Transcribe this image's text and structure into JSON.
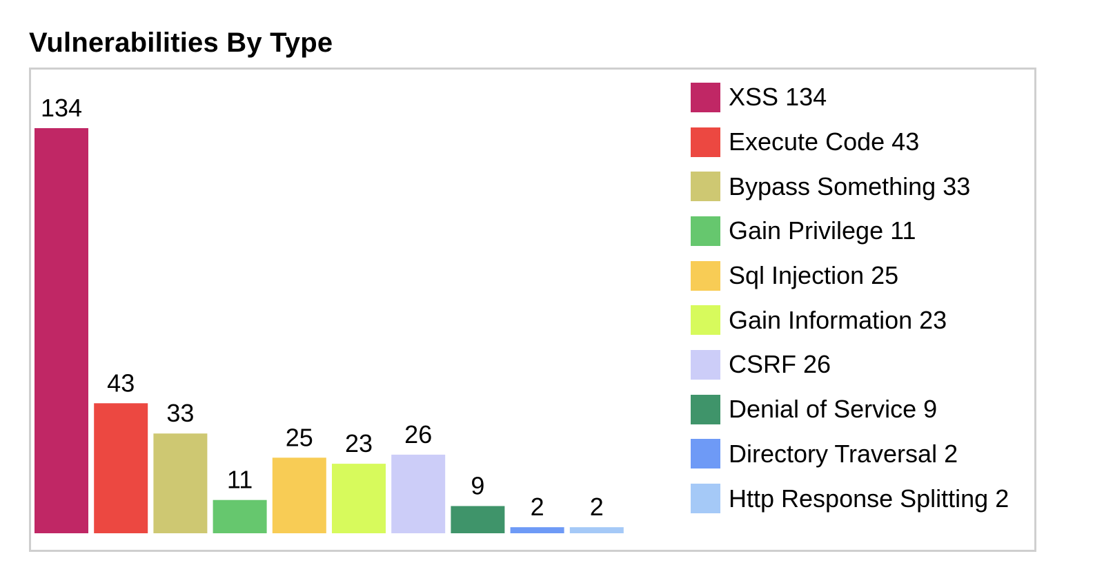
{
  "chart_data": {
    "type": "bar",
    "title": "Vulnerabilities By Type",
    "categories": [
      "XSS",
      "Execute Code",
      "Bypass Something",
      "Gain Privilege",
      "Sql Injection",
      "Gain Information",
      "CSRF",
      "Denial of Service",
      "Directory Traversal",
      "Http Response Splitting"
    ],
    "values": [
      134,
      43,
      33,
      11,
      25,
      23,
      26,
      9,
      2,
      2
    ],
    "colors": [
      "#c02765",
      "#ec4841",
      "#cec872",
      "#66c76e",
      "#f8cc55",
      "#d7fa5c",
      "#cccdf8",
      "#3f946a",
      "#6e9af6",
      "#a5c9f7"
    ],
    "ylim": [
      0,
      134
    ],
    "xlabel": "",
    "ylabel": "",
    "grid": false,
    "legend_position": "right",
    "data_labels": true
  }
}
